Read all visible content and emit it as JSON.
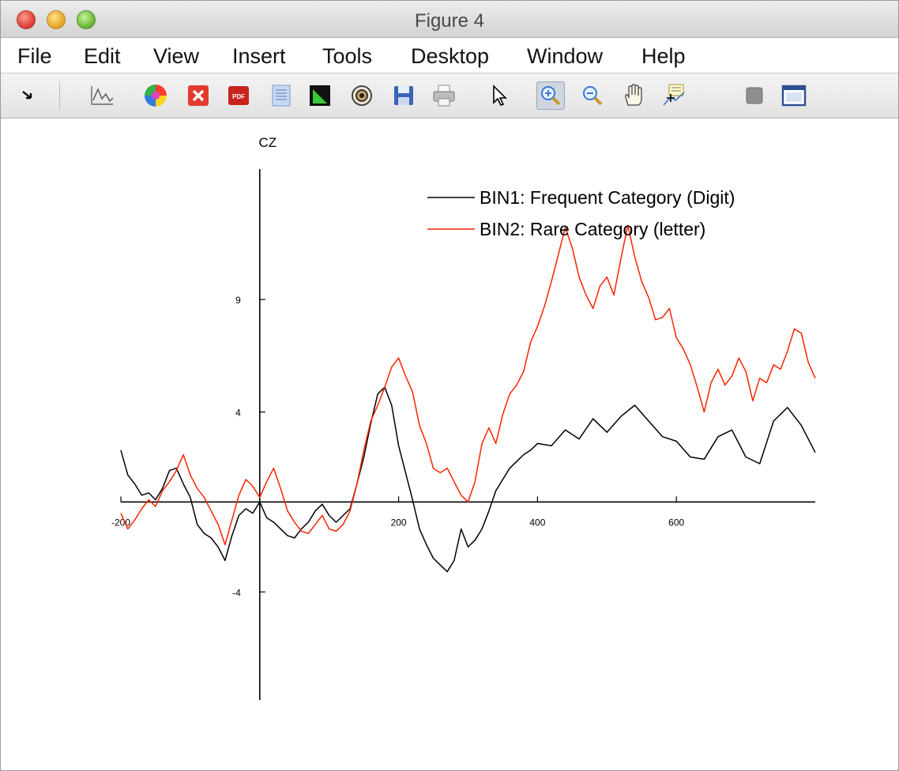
{
  "window": {
    "title": "Figure 4"
  },
  "menu": [
    "File",
    "Edit",
    "View",
    "Insert",
    "Tools",
    "Desktop",
    "Window",
    "Help"
  ],
  "toolbar": [
    "arrow-icon",
    "plot-icon",
    "colorwheel-icon",
    "close-figure-icon",
    "pdf-icon",
    "document-icon",
    "triangle-icon",
    "target-icon",
    "save-icon",
    "print-icon",
    "pointer-icon",
    "zoom-in-icon",
    "zoom-out-icon",
    "pan-icon",
    "data-cursor-icon",
    "gray-square-icon",
    "window-icon"
  ],
  "chart_data": {
    "type": "line",
    "title": "CZ",
    "xlabel": "",
    "ylabel": "",
    "xlim": [
      -200,
      800
    ],
    "ylim": [
      -8.8,
      14.8
    ],
    "x_ticks": [
      -200,
      200,
      400,
      600
    ],
    "x_tick_labels": [
      "-200",
      "200",
      "400",
      "600"
    ],
    "y_ticks": [
      9,
      4,
      -4
    ],
    "y_tick_labels": [
      "9",
      "4",
      "-4"
    ],
    "grid": false,
    "legend": "top-right",
    "series": [
      {
        "name": "BIN1: Frequent Category (Digit)",
        "color": "#000000",
        "x": [
          -200,
          -190,
          -180,
          -170,
          -160,
          -150,
          -140,
          -130,
          -120,
          -110,
          -100,
          -90,
          -80,
          -70,
          -60,
          -50,
          -40,
          -30,
          -20,
          -10,
          0,
          10,
          20,
          30,
          40,
          50,
          60,
          70,
          80,
          90,
          100,
          110,
          120,
          130,
          140,
          150,
          160,
          170,
          180,
          190,
          200,
          210,
          220,
          230,
          240,
          250,
          260,
          270,
          280,
          290,
          300,
          310,
          320,
          330,
          340,
          350,
          360,
          370,
          380,
          390,
          400,
          420,
          440,
          460,
          480,
          500,
          520,
          540,
          560,
          580,
          600,
          620,
          640,
          660,
          680,
          700,
          720,
          740,
          760,
          780,
          800
        ],
        "y": [
          2.3,
          1.2,
          0.8,
          0.3,
          0.4,
          0.1,
          0.6,
          1.4,
          1.5,
          0.8,
          0.2,
          -1.0,
          -1.4,
          -1.6,
          -2.0,
          -2.6,
          -1.5,
          -0.6,
          -0.3,
          -0.5,
          0.0,
          -0.7,
          -0.9,
          -1.2,
          -1.5,
          -1.6,
          -1.2,
          -0.9,
          -0.4,
          -0.1,
          -0.6,
          -0.9,
          -0.6,
          -0.3,
          0.8,
          2.0,
          3.5,
          4.8,
          5.1,
          4.3,
          2.5,
          1.3,
          0.1,
          -1.2,
          -1.9,
          -2.5,
          -2.8,
          -3.1,
          -2.6,
          -1.2,
          -2.0,
          -1.7,
          -1.2,
          -0.4,
          0.5,
          1.0,
          1.5,
          1.8,
          2.1,
          2.3,
          2.6,
          2.5,
          3.2,
          2.8,
          3.7,
          3.1,
          3.8,
          4.3,
          3.6,
          2.9,
          2.7,
          2.0,
          1.9,
          2.9,
          3.2,
          2.0,
          1.7,
          3.6,
          4.2,
          3.4,
          2.2
        ]
      },
      {
        "name": "BIN2: Rare Category (letter)",
        "color": "#ff2200",
        "x": [
          -200,
          -190,
          -180,
          -170,
          -160,
          -150,
          -140,
          -130,
          -120,
          -110,
          -100,
          -90,
          -80,
          -70,
          -60,
          -50,
          -40,
          -30,
          -20,
          -10,
          0,
          10,
          20,
          30,
          40,
          50,
          60,
          70,
          80,
          90,
          100,
          110,
          120,
          130,
          140,
          150,
          160,
          170,
          180,
          190,
          200,
          210,
          220,
          230,
          240,
          250,
          260,
          270,
          280,
          290,
          300,
          310,
          320,
          330,
          340,
          350,
          360,
          370,
          380,
          390,
          400,
          410,
          420,
          430,
          440,
          450,
          460,
          470,
          480,
          490,
          500,
          510,
          520,
          530,
          540,
          550,
          560,
          570,
          580,
          590,
          600,
          610,
          620,
          630,
          640,
          650,
          660,
          670,
          680,
          690,
          700,
          710,
          720,
          730,
          740,
          750,
          760,
          770,
          780,
          790,
          800
        ],
        "y": [
          -0.5,
          -1.2,
          -0.8,
          -0.3,
          0.1,
          -0.2,
          0.5,
          0.9,
          1.4,
          2.1,
          1.2,
          0.6,
          0.2,
          -0.4,
          -1.0,
          -1.9,
          -0.8,
          0.3,
          1.0,
          0.7,
          0.2,
          0.9,
          1.5,
          0.6,
          -0.4,
          -0.9,
          -1.3,
          -1.4,
          -1.0,
          -0.6,
          -1.2,
          -1.3,
          -1.0,
          -0.4,
          0.8,
          2.3,
          3.6,
          4.3,
          5.1,
          6.0,
          6.4,
          5.6,
          4.9,
          3.4,
          2.6,
          1.5,
          1.3,
          1.5,
          0.9,
          0.3,
          0.0,
          0.9,
          2.6,
          3.3,
          2.6,
          3.9,
          4.8,
          5.2,
          5.8,
          7.1,
          7.8,
          8.7,
          9.8,
          11.0,
          12.2,
          11.3,
          10.0,
          9.2,
          8.6,
          9.6,
          10.0,
          9.2,
          10.8,
          12.3,
          10.9,
          9.8,
          9.1,
          8.1,
          8.2,
          8.6,
          7.3,
          6.8,
          6.1,
          5.1,
          4.0,
          5.3,
          5.9,
          5.2,
          5.6,
          6.4,
          5.8,
          4.5,
          5.5,
          5.3,
          6.1,
          5.9,
          6.7,
          7.7,
          7.5,
          6.2,
          5.5
        ]
      }
    ]
  }
}
